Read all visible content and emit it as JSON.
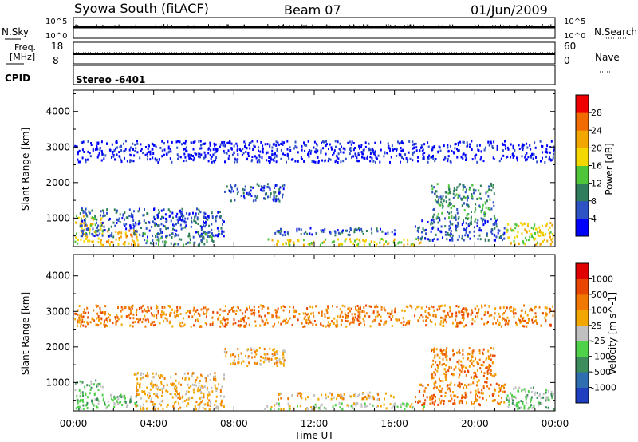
{
  "header": {
    "station": "Syowa South (fitACF)",
    "beam": "Beam 07",
    "date": "01/Jun/2009"
  },
  "status_panels": {
    "nsky": {
      "label": "N.Sky",
      "tick_top": "10^5",
      "tick_bottom": "10^0"
    },
    "nsearch": {
      "label": "N.Search",
      "tick_top": "10^5",
      "tick_bottom": "10^0"
    },
    "freq": {
      "label_line1": "Freq.",
      "label_line2": "[MHz]",
      "tick_top": "18",
      "tick_bottom": "8"
    },
    "nave": {
      "label": "Nave",
      "tick_top": "60",
      "tick_bottom": "0"
    },
    "cpid": {
      "label": "CPID",
      "value": "Stereo -6401"
    }
  },
  "chart_data": [
    {
      "type": "heatmap",
      "name": "power",
      "xlabel": "Time UT",
      "ylabel": "Slant Range [km]",
      "xlim": [
        0,
        24
      ],
      "ylim": [
        200,
        4600
      ],
      "x_ticks": [
        "00:00",
        "04:00",
        "08:00",
        "12:00",
        "16:00",
        "20:00",
        "00:00"
      ],
      "y_ticks": [
        1000,
        2000,
        3000,
        4000
      ],
      "colorbar": {
        "label": "Power [dB]",
        "ticks": [
          "4",
          "8",
          "12",
          "16",
          "20",
          "24",
          "28"
        ],
        "colors": [
          "#0000ff",
          "#2d52c4",
          "#2f7d5c",
          "#4fc63a",
          "#f5d700",
          "#f2a700",
          "#f26b00",
          "#ee0000"
        ]
      },
      "scatter_regions": [
        {
          "t0": 0.0,
          "t1": 1.5,
          "r0": 250,
          "r1": 1100,
          "level": 4
        },
        {
          "t0": 1.5,
          "t1": 3.2,
          "r0": 250,
          "r1": 700,
          "level": 5
        },
        {
          "t0": 0.3,
          "t1": 7.5,
          "r0": 500,
          "r1": 1300,
          "level": 1
        },
        {
          "t0": 3.5,
          "t1": 7.0,
          "r0": 250,
          "r1": 600,
          "level": 2
        },
        {
          "t0": 7.5,
          "t1": 10.5,
          "r0": 1500,
          "r1": 2000,
          "level": 1
        },
        {
          "t0": 9.5,
          "t1": 17.5,
          "r0": 250,
          "r1": 450,
          "level": 4
        },
        {
          "t0": 10.0,
          "t1": 16.0,
          "r0": 550,
          "r1": 750,
          "level": 1
        },
        {
          "t0": 17.8,
          "t1": 21.0,
          "r0": 1000,
          "r1": 2000,
          "level": 2
        },
        {
          "t0": 17.0,
          "t1": 21.5,
          "r0": 400,
          "r1": 1000,
          "level": 1
        },
        {
          "t0": 21.5,
          "t1": 24.0,
          "r0": 250,
          "r1": 900,
          "level": 4
        },
        {
          "t0": 0.0,
          "t1": 24.0,
          "r0": 2600,
          "r1": 3200,
          "level": 0
        }
      ]
    },
    {
      "type": "heatmap",
      "name": "velocity",
      "xlabel": "Time UT",
      "ylabel": "Slant Range [km]",
      "xlim": [
        0,
        24
      ],
      "ylim": [
        200,
        4600
      ],
      "x_ticks": [
        "00:00",
        "04:00",
        "08:00",
        "12:00",
        "16:00",
        "20:00",
        "00:00"
      ],
      "y_ticks": [
        1000,
        2000,
        3000,
        4000
      ],
      "colorbar": {
        "label": "Velocity [m s^-1]",
        "ticks": [
          "1000",
          "500",
          "100",
          "25",
          "-25",
          "-100",
          "-500",
          "-1000"
        ],
        "colors": [
          "#1e3fbf",
          "#2e6db0",
          "#3c8c5c",
          "#4fd14a",
          "#c0c0c0",
          "#f2a600",
          "#f07800",
          "#e84600",
          "#e00000"
        ]
      },
      "scatter_regions": [
        {
          "t0": 0.0,
          "t1": 1.5,
          "r0": 250,
          "r1": 1100,
          "level": 3
        },
        {
          "t0": 1.5,
          "t1": 3.2,
          "r0": 250,
          "r1": 700,
          "level": 3
        },
        {
          "t0": 3.0,
          "t1": 7.5,
          "r0": 250,
          "r1": 1300,
          "level": 5
        },
        {
          "t0": 7.5,
          "t1": 10.5,
          "r0": 1500,
          "r1": 2000,
          "level": 5
        },
        {
          "t0": 9.5,
          "t1": 17.5,
          "r0": 250,
          "r1": 450,
          "level": 4
        },
        {
          "t0": 10.0,
          "t1": 16.0,
          "r0": 550,
          "r1": 750,
          "level": 5
        },
        {
          "t0": 17.8,
          "t1": 21.0,
          "r0": 1000,
          "r1": 2000,
          "level": 6
        },
        {
          "t0": 17.0,
          "t1": 21.5,
          "r0": 400,
          "r1": 1000,
          "level": 6
        },
        {
          "t0": 21.5,
          "t1": 24.0,
          "r0": 250,
          "r1": 900,
          "level": 3
        },
        {
          "t0": 0.0,
          "t1": 24.0,
          "r0": 2600,
          "r1": 3200,
          "level": 6
        }
      ]
    }
  ]
}
